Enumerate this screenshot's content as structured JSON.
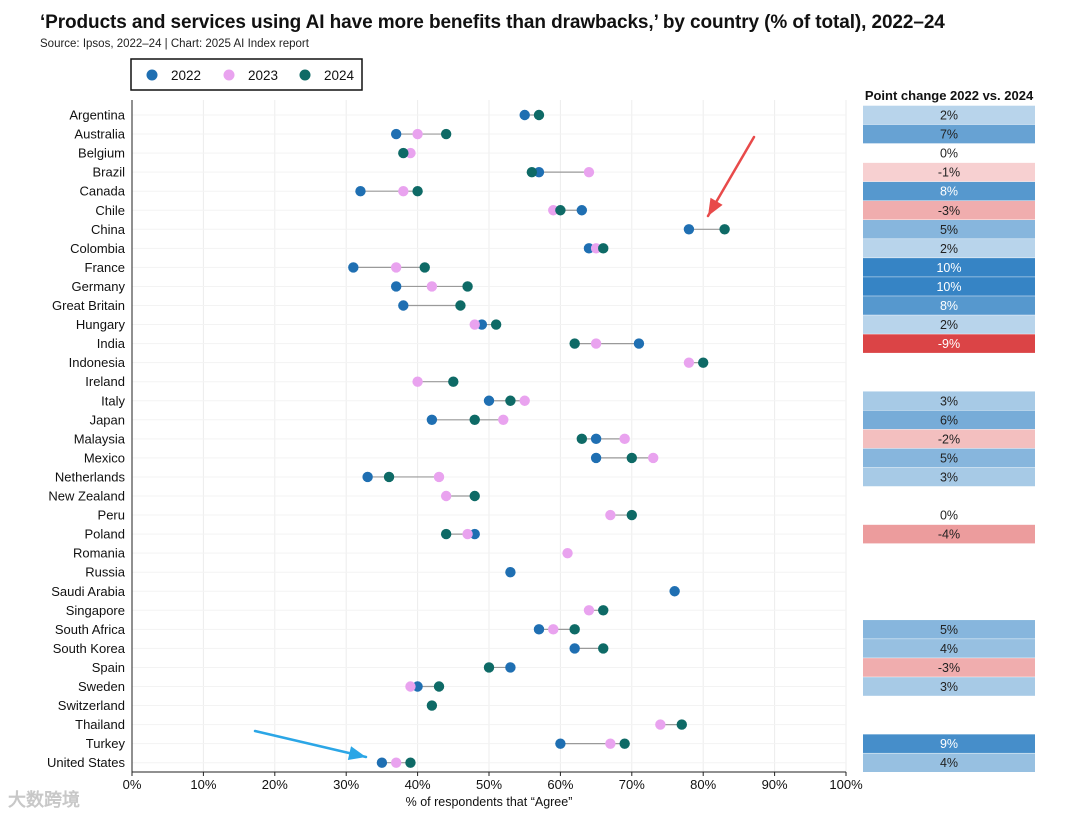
{
  "title": "‘Products and services using AI have more benefits than drawbacks,’ by country (% of total), 2022–24",
  "subtitle": "Source: Ipsos, 2022–24 | Chart: 2025 AI Index report",
  "watermark": "大数跨境",
  "colors": {
    "y2022": "#1f6fb2",
    "y2023": "#e9a3ef",
    "y2024": "#0e6a66",
    "connector": "#9a9a9a",
    "arrow_red": "#e84a4a",
    "arrow_blue": "#2ba6e6"
  },
  "chart_data": {
    "type": "dumbbell",
    "title": "‘Products and services using AI have more benefits than drawbacks,’ by country (% of total), 2022–24",
    "xlabel": "% of respondents that “Agree”",
    "xlim": [
      0,
      100
    ],
    "xticks": [
      "0%",
      "10%",
      "20%",
      "30%",
      "40%",
      "50%",
      "60%",
      "70%",
      "80%",
      "90%",
      "100%"
    ],
    "legend": [
      "2022",
      "2023",
      "2024"
    ],
    "legend_position": "top-left",
    "change_header": "Point change 2022 vs. 2024",
    "countries": [
      {
        "name": "Argentina",
        "y2022": 55,
        "y2023": null,
        "y2024": 57,
        "change": 2
      },
      {
        "name": "Australia",
        "y2022": 37,
        "y2023": 40,
        "y2024": 44,
        "change": 7
      },
      {
        "name": "Belgium",
        "y2022": null,
        "y2023": 39,
        "y2024": 38,
        "change": 0
      },
      {
        "name": "Brazil",
        "y2022": 57,
        "y2023": 64,
        "y2024": 56,
        "change": -1
      },
      {
        "name": "Canada",
        "y2022": 32,
        "y2023": 38,
        "y2024": 40,
        "change": 8
      },
      {
        "name": "Chile",
        "y2022": 63,
        "y2023": 59,
        "y2024": 60,
        "change": -3
      },
      {
        "name": "China",
        "y2022": 78,
        "y2023": null,
        "y2024": 83,
        "change": 5
      },
      {
        "name": "Colombia",
        "y2022": 64,
        "y2023": 65,
        "y2024": 66,
        "change": 2
      },
      {
        "name": "France",
        "y2022": 31,
        "y2023": 37,
        "y2024": 41,
        "change": 10
      },
      {
        "name": "Germany",
        "y2022": 37,
        "y2023": 42,
        "y2024": 47,
        "change": 10
      },
      {
        "name": "Great Britain",
        "y2022": 38,
        "y2023": null,
        "y2024": 46,
        "change": 8
      },
      {
        "name": "Hungary",
        "y2022": 49,
        "y2023": 48,
        "y2024": 51,
        "change": 2
      },
      {
        "name": "India",
        "y2022": 71,
        "y2023": 65,
        "y2024": 62,
        "change": -9
      },
      {
        "name": "Indonesia",
        "y2022": null,
        "y2023": 78,
        "y2024": 80,
        "change": null
      },
      {
        "name": "Ireland",
        "y2022": null,
        "y2023": 40,
        "y2024": 45,
        "change": null
      },
      {
        "name": "Italy",
        "y2022": 50,
        "y2023": 55,
        "y2024": 53,
        "change": 3
      },
      {
        "name": "Japan",
        "y2022": 42,
        "y2023": 52,
        "y2024": 48,
        "change": 6
      },
      {
        "name": "Malaysia",
        "y2022": 65,
        "y2023": 69,
        "y2024": 63,
        "change": -2
      },
      {
        "name": "Mexico",
        "y2022": 65,
        "y2023": 73,
        "y2024": 70,
        "change": 5
      },
      {
        "name": "Netherlands",
        "y2022": 33,
        "y2023": 43,
        "y2024": 36,
        "change": 3
      },
      {
        "name": "New Zealand",
        "y2022": null,
        "y2023": 44,
        "y2024": 48,
        "change": null
      },
      {
        "name": "Peru",
        "y2022": null,
        "y2023": 67,
        "y2024": 70,
        "change": 0
      },
      {
        "name": "Poland",
        "y2022": 48,
        "y2023": 47,
        "y2024": 44,
        "change": -4
      },
      {
        "name": "Romania",
        "y2022": null,
        "y2023": 61,
        "y2024": null,
        "change": null
      },
      {
        "name": "Russia",
        "y2022": 53,
        "y2023": null,
        "y2024": null,
        "change": null
      },
      {
        "name": "Saudi Arabia",
        "y2022": 76,
        "y2023": null,
        "y2024": null,
        "change": null
      },
      {
        "name": "Singapore",
        "y2022": null,
        "y2023": 64,
        "y2024": 66,
        "change": null
      },
      {
        "name": "South Africa",
        "y2022": 57,
        "y2023": 59,
        "y2024": 62,
        "change": 5
      },
      {
        "name": "South Korea",
        "y2022": 62,
        "y2023": null,
        "y2024": 66,
        "change": 4
      },
      {
        "name": "Spain",
        "y2022": 53,
        "y2023": null,
        "y2024": 50,
        "change": -3
      },
      {
        "name": "Sweden",
        "y2022": 40,
        "y2023": 39,
        "y2024": 43,
        "change": 3
      },
      {
        "name": "Switzerland",
        "y2022": null,
        "y2023": null,
        "y2024": 42,
        "change": null
      },
      {
        "name": "Thailand",
        "y2022": null,
        "y2023": 74,
        "y2024": 77,
        "change": null
      },
      {
        "name": "Turkey",
        "y2022": 60,
        "y2023": 67,
        "y2024": 69,
        "change": 9
      },
      {
        "name": "United States",
        "y2022": 35,
        "y2023": 37,
        "y2024": 39,
        "change": 4
      }
    ]
  }
}
